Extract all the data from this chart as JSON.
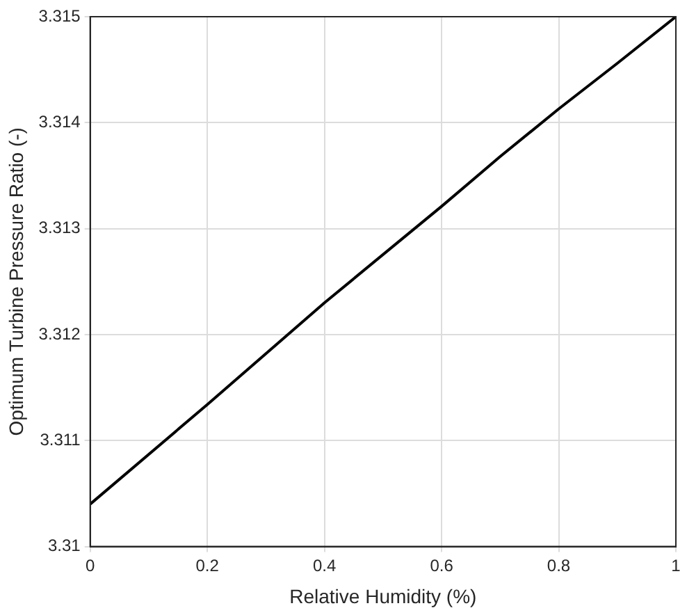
{
  "chart_data": {
    "type": "line",
    "xlabel": "Relative Humidity (%)",
    "ylabel": "Optimum Turbine Pressure Ratio (-)",
    "x": [
      0,
      0.2,
      0.4,
      0.6,
      0.7,
      0.8,
      0.9,
      1
    ],
    "series": [
      {
        "color": "#000000",
        "values": [
          3.3104,
          3.31134,
          3.3123,
          3.31321,
          3.31368,
          3.31413,
          3.31456,
          3.315
        ]
      }
    ],
    "xlim": [
      0,
      1
    ],
    "xticks": [
      0,
      0.2,
      0.4,
      0.6,
      0.8,
      1
    ],
    "ylim": [
      3.31,
      3.315
    ],
    "yticks": [
      3.31,
      3.311,
      3.312,
      3.313,
      3.314,
      3.315
    ],
    "grid": true,
    "legend": false,
    "marker": "none",
    "line_style": "solid"
  }
}
